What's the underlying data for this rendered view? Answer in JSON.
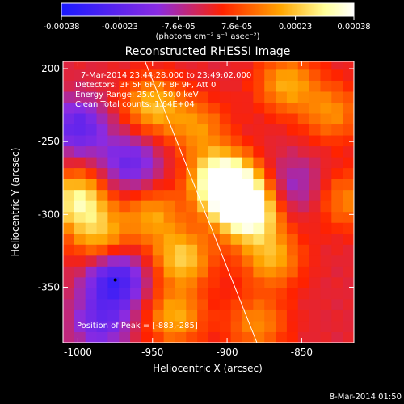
{
  "chart_data": {
    "type": "heatmap",
    "title": "Reconstructed RHESSI Image",
    "colorbar": {
      "ticks": [
        "-0.00038",
        "-0.00023",
        "-7.6e-05",
        "7.6e-05",
        "0.00023",
        "0.00038"
      ],
      "range": [
        -0.00038,
        0.00038
      ],
      "unit_label": "(photons cm⁻² s⁻¹ asec⁻²)",
      "colors": [
        "#1a1aff",
        "#8a2be2",
        "#ff2200",
        "#ffa500",
        "#ffff99",
        "#ffffff"
      ]
    },
    "xlabel": "Heliocentric X (arcsec)",
    "ylabel": "Heliocentric Y (arcsec)",
    "x_ticks": [
      "-1000",
      "-950",
      "-900",
      "-850"
    ],
    "y_ticks": [
      "-200",
      "-250",
      "-300",
      "-350"
    ],
    "xlim": [
      -1010,
      -815
    ],
    "ylim": [
      -388,
      -195
    ],
    "annotations": [
      "7-Mar-2014 23:44:28.000 to 23:49:02.000",
      "Detectors: 3F 5F 6F 7F 8F 9F, Att 0",
      "Energy Range: 25.0 - 50.0 keV",
      "Clean    Total counts: 1.64E+04",
      "Position of Peak = [-883,-285]"
    ],
    "peak": [
      -883,
      -285
    ],
    "limb_line": {
      "x": [
        -955,
        -880
      ],
      "y": [
        -195,
        -388
      ]
    },
    "hotspots": [
      {
        "x": -895,
        "y": -285,
        "value": 0.00038
      },
      {
        "x": -885,
        "y": -300,
        "value": 0.00032
      },
      {
        "x": -905,
        "y": -275,
        "value": 0.0003
      },
      {
        "x": -870,
        "y": -330,
        "value": 0.0002
      },
      {
        "x": -930,
        "y": -330,
        "value": 0.00024
      },
      {
        "x": -935,
        "y": -370,
        "value": 0.0002
      },
      {
        "x": -950,
        "y": -300,
        "value": 0.00018
      },
      {
        "x": -1000,
        "y": -290,
        "value": 0.0003
      },
      {
        "x": -985,
        "y": -315,
        "value": 0.0002
      },
      {
        "x": -950,
        "y": -225,
        "value": 0.00022
      },
      {
        "x": -920,
        "y": -240,
        "value": 0.00016
      },
      {
        "x": -860,
        "y": -210,
        "value": 0.0002
      },
      {
        "x": -830,
        "y": -230,
        "value": 0.00016
      },
      {
        "x": -820,
        "y": -290,
        "value": 0.00015
      },
      {
        "x": -880,
        "y": -375,
        "value": 0.00016
      },
      {
        "x": -975,
        "y": -345,
        "value": -0.0003
      },
      {
        "x": -1000,
        "y": -240,
        "value": -0.00022
      },
      {
        "x": -965,
        "y": -265,
        "value": -0.0002
      },
      {
        "x": -855,
        "y": -280,
        "value": -0.00012
      },
      {
        "x": -985,
        "y": -375,
        "value": -0.00018
      }
    ]
  },
  "footer": {
    "timestamp": "8-Mar-2014 01:50"
  }
}
